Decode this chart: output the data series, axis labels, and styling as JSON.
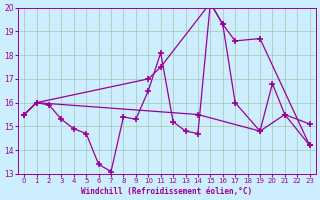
{
  "xlabel": "Windchill (Refroidissement éolien,°C)",
  "bg_color": "#cceeff",
  "grid_color": "#aaccbb",
  "line_color": "#990099",
  "xlim": [
    -0.5,
    23.5
  ],
  "ylim": [
    13,
    20
  ],
  "yticks": [
    13,
    14,
    15,
    16,
    17,
    18,
    19,
    20
  ],
  "xticks": [
    0,
    1,
    2,
    3,
    4,
    5,
    6,
    7,
    8,
    9,
    10,
    11,
    12,
    13,
    14,
    15,
    16,
    17,
    18,
    19,
    20,
    21,
    22,
    23
  ],
  "line1_x": [
    0,
    1,
    2,
    3,
    4,
    5,
    6,
    7,
    8,
    9,
    10,
    11,
    12,
    13,
    14,
    15,
    16,
    17,
    19,
    20,
    21,
    23
  ],
  "line1_y": [
    15.5,
    16.0,
    15.9,
    15.3,
    14.9,
    14.7,
    13.4,
    13.1,
    15.4,
    15.3,
    16.5,
    18.1,
    15.2,
    14.8,
    14.7,
    20.2,
    19.3,
    16.0,
    14.8,
    16.8,
    15.5,
    15.1
  ],
  "line2_x": [
    0,
    1,
    10,
    11,
    15,
    16,
    17,
    19,
    23
  ],
  "line2_y": [
    15.5,
    16.0,
    17.0,
    17.5,
    20.2,
    19.3,
    18.6,
    18.7,
    14.2
  ],
  "line3_x": [
    0,
    1,
    14,
    19,
    21,
    23
  ],
  "line3_y": [
    15.5,
    16.0,
    15.5,
    14.8,
    15.5,
    14.2
  ]
}
